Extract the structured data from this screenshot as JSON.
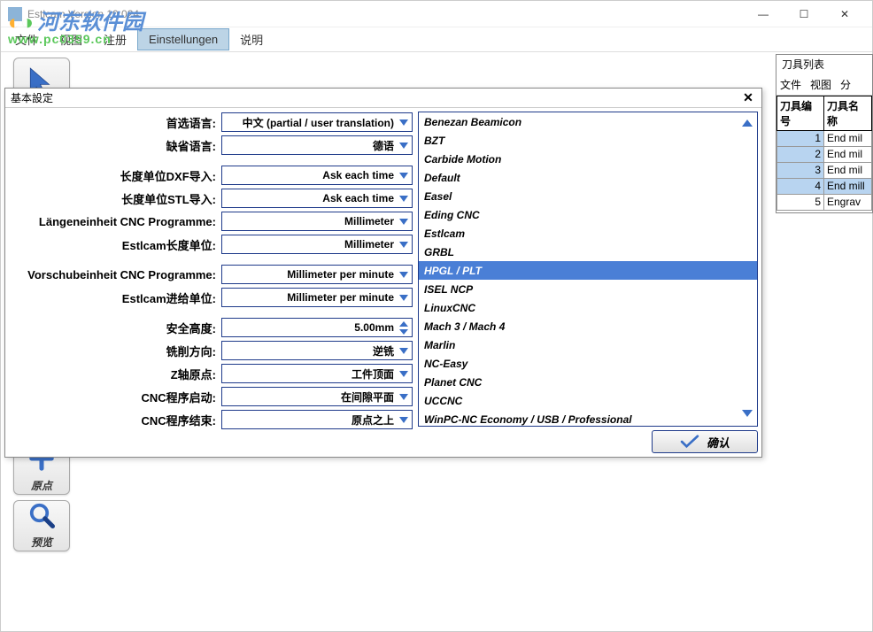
{
  "window": {
    "title": "Estlcam Version 10.024"
  },
  "watermark": {
    "line1_text": "河东软件园",
    "line2": "www.pc0359.cn"
  },
  "menu": {
    "items": [
      "文件",
      "视图",
      "注册",
      "Einstellungen",
      "说明"
    ],
    "active_index": 3
  },
  "tools": {
    "origin_label": "原点",
    "preview_label": "预览"
  },
  "dialog": {
    "title": "基本設定",
    "rows": [
      {
        "label": "首选语言:",
        "value": "中文 (partial / user translation)",
        "type": "dd"
      },
      {
        "label": "缺省语言:",
        "value": "德语",
        "type": "dd"
      },
      {
        "label": "长度单位DXF导入:",
        "value": "Ask each time",
        "type": "dd",
        "gap": true
      },
      {
        "label": "长度单位STL导入:",
        "value": "Ask each time",
        "type": "dd"
      },
      {
        "label": "Längeneinheit CNC Programme:",
        "value": "Millimeter",
        "type": "dd"
      },
      {
        "label": "Estlcam长度单位:",
        "value": "Millimeter",
        "type": "dd"
      },
      {
        "label": "Vorschubeinheit CNC Programme:",
        "value": "Millimeter per minute",
        "type": "dd",
        "gap": true
      },
      {
        "label": "Estlcam进给单位:",
        "value": "Millimeter per minute",
        "type": "dd"
      },
      {
        "label": "安全高度:",
        "value": "5.00mm",
        "type": "spin",
        "gap": true
      },
      {
        "label": "铣削方向:",
        "value": "逆铣",
        "type": "dd"
      },
      {
        "label": "Z轴原点:",
        "value": "工件顶面",
        "type": "dd"
      },
      {
        "label": "CNC程序启动:",
        "value": "在间隙平面",
        "type": "dd"
      },
      {
        "label": "CNC程序结束:",
        "value": "原点之上",
        "type": "dd"
      }
    ],
    "cnc_list": [
      "Benezan Beamicon",
      "BZT",
      "Carbide Motion",
      "Default",
      "Easel",
      "Eding CNC",
      "Estlcam",
      "GRBL",
      "HPGL / PLT",
      "ISEL NCP",
      "LinuxCNC",
      "Mach 3 / Mach 4",
      "Marlin",
      "NC-Easy",
      "Planet CNC",
      "UCCNC",
      "WinPC-NC Economy / USB / Professional"
    ],
    "cnc_selected_index": 8,
    "ok_label": "确认"
  },
  "toolpanel": {
    "title": "刀具列表",
    "menu": [
      "文件",
      "视图",
      "分"
    ],
    "headers": [
      "刀具编号",
      "刀具名称"
    ],
    "rows": [
      {
        "num": "1",
        "name": "End mil"
      },
      {
        "num": "2",
        "name": "End mil"
      },
      {
        "num": "3",
        "name": "End mil"
      },
      {
        "num": "4",
        "name": "End mill"
      },
      {
        "num": "5",
        "name": "Engrav"
      }
    ],
    "selected_index": 3
  },
  "colors": {
    "accent_blue": "#4a7fd6",
    "border_blue": "#1e3a8a",
    "scroll_arrow": "#3a6fc6"
  }
}
